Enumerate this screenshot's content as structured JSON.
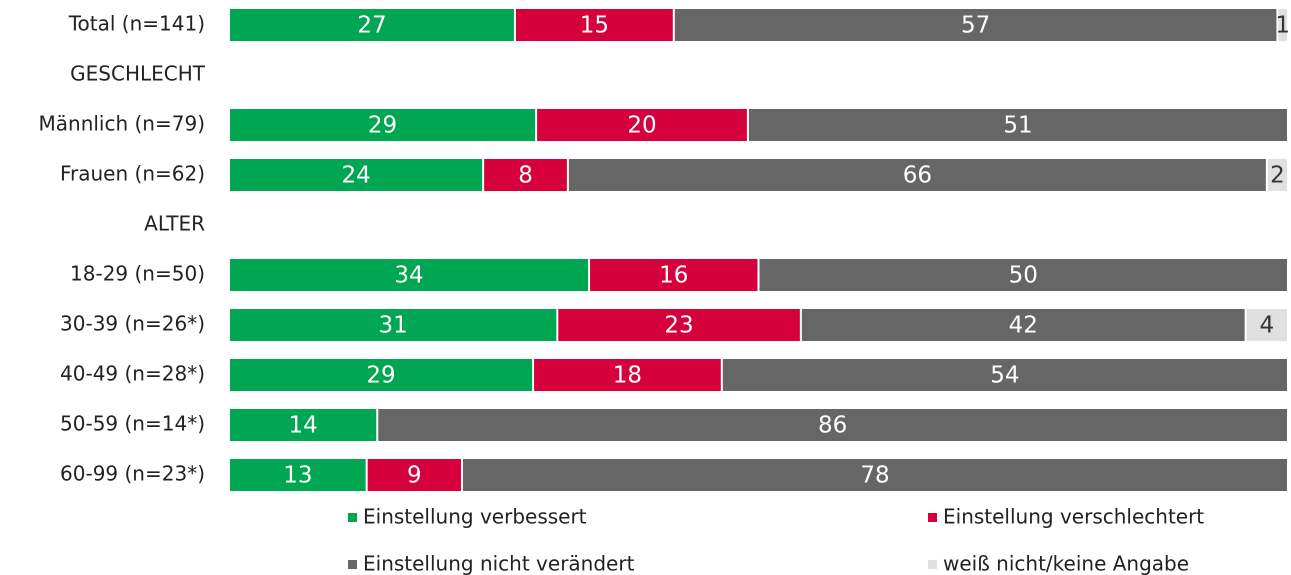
{
  "chart_data": {
    "type": "stacked-bar-horizontal",
    "categories": [
      "Total (n=141)",
      "GESCHLECHT",
      "Männlich (n=79)",
      "Frauen (n=62)",
      "ALTER",
      "18-29 (n=50)",
      "30-39 (n=26*)",
      "40-49 (n=28*)",
      "50-59 (n=14*)",
      "60-99 (n=23*)"
    ],
    "series": [
      {
        "name": "Einstellung verbessert",
        "color": "#00a651",
        "values": [
          27,
          null,
          29,
          24,
          null,
          34,
          31,
          29,
          14,
          13
        ]
      },
      {
        "name": "Einstellung verschlechtert",
        "color": "#d6003d",
        "values": [
          15,
          null,
          20,
          8,
          null,
          16,
          23,
          18,
          null,
          9
        ]
      },
      {
        "name": "Einstellung nicht verändert",
        "color": "#666666",
        "values": [
          57,
          null,
          51,
          66,
          null,
          50,
          42,
          54,
          86,
          78
        ]
      },
      {
        "name": "weiß nicht/keine Angabe",
        "color": "#e0e0e0",
        "values": [
          1,
          null,
          null,
          2,
          null,
          null,
          4,
          null,
          null,
          null
        ]
      }
    ],
    "legend": "bottom"
  }
}
